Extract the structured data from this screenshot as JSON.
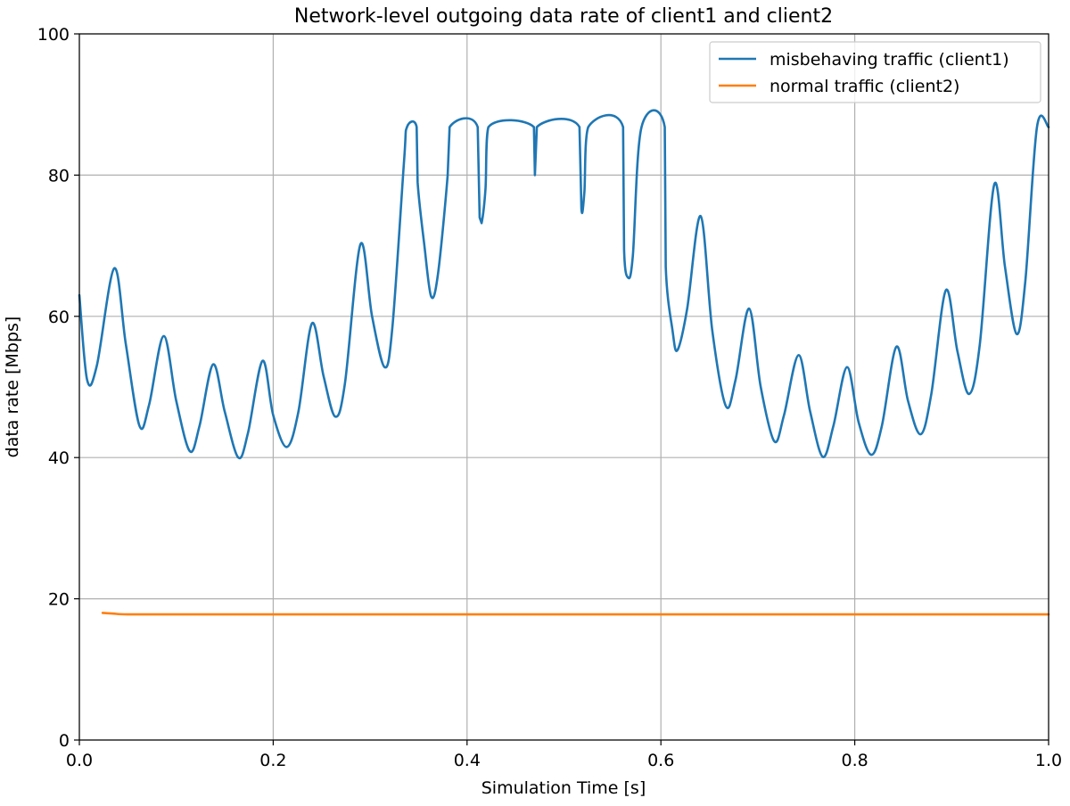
{
  "chart_data": {
    "type": "line",
    "title": "Network-level outgoing data rate of client1 and client2",
    "xlabel": "Simulation Time [s]",
    "ylabel": "data rate [Mbps]",
    "xlim": [
      0.0,
      1.0
    ],
    "ylim": [
      0,
      100
    ],
    "x_ticks": [
      0.0,
      0.2,
      0.4,
      0.6,
      0.8,
      1.0
    ],
    "x_tick_labels": [
      "0.0",
      "0.2",
      "0.4",
      "0.6",
      "0.8",
      "1.0"
    ],
    "y_ticks": [
      0,
      20,
      40,
      60,
      80,
      100
    ],
    "y_tick_labels": [
      "0",
      "20",
      "40",
      "60",
      "80",
      "100"
    ],
    "grid": true,
    "legend_position": "top-right",
    "series": [
      {
        "name": "misbehaving traffic (client1)",
        "color": "#1f77b4",
        "points": [
          [
            0.0,
            63.0
          ],
          [
            0.008,
            51.0
          ],
          [
            0.018,
            53.0
          ],
          [
            0.036,
            66.8
          ],
          [
            0.048,
            56.0
          ],
          [
            0.062,
            44.5
          ],
          [
            0.072,
            47.5
          ],
          [
            0.087,
            57.2
          ],
          [
            0.1,
            48.0
          ],
          [
            0.114,
            40.9
          ],
          [
            0.124,
            44.5
          ],
          [
            0.138,
            53.2
          ],
          [
            0.15,
            46.5
          ],
          [
            0.164,
            40.0
          ],
          [
            0.174,
            43.5
          ],
          [
            0.189,
            53.7
          ],
          [
            0.2,
            46.0
          ],
          [
            0.214,
            41.5
          ],
          [
            0.226,
            46.5
          ],
          [
            0.24,
            59.0
          ],
          [
            0.252,
            51.5
          ],
          [
            0.264,
            45.8
          ],
          [
            0.274,
            50.5
          ],
          [
            0.29,
            70.2
          ],
          [
            0.302,
            60.0
          ],
          [
            0.315,
            52.8
          ],
          [
            0.323,
            58.5
          ],
          [
            0.335,
            82.0
          ],
          [
            0.338,
            86.8
          ],
          [
            0.348,
            86.8
          ],
          [
            0.349,
            79.0
          ],
          [
            0.356,
            70.0
          ],
          [
            0.363,
            62.8
          ],
          [
            0.37,
            66.0
          ],
          [
            0.38,
            80.0
          ],
          [
            0.382,
            86.8
          ],
          [
            0.411,
            86.8
          ],
          [
            0.413,
            74.0
          ],
          [
            0.415,
            73.2
          ],
          [
            0.419,
            78.0
          ],
          [
            0.422,
            86.8
          ],
          [
            0.469,
            86.8
          ],
          [
            0.47,
            80.0
          ],
          [
            0.472,
            86.8
          ],
          [
            0.516,
            86.8
          ],
          [
            0.518,
            75.2
          ],
          [
            0.521,
            77.5
          ],
          [
            0.525,
            86.8
          ],
          [
            0.561,
            86.8
          ],
          [
            0.562,
            69.5
          ],
          [
            0.566,
            65.5
          ],
          [
            0.571,
            68.5
          ],
          [
            0.58,
            86.8
          ],
          [
            0.604,
            86.8
          ],
          [
            0.605,
            67.0
          ],
          [
            0.612,
            58.0
          ],
          [
            0.617,
            55.2
          ],
          [
            0.627,
            61.0
          ],
          [
            0.641,
            74.2
          ],
          [
            0.653,
            58.0
          ],
          [
            0.667,
            47.3
          ],
          [
            0.677,
            51.0
          ],
          [
            0.691,
            61.1
          ],
          [
            0.703,
            50.0
          ],
          [
            0.717,
            42.3
          ],
          [
            0.727,
            46.0
          ],
          [
            0.742,
            54.5
          ],
          [
            0.754,
            46.5
          ],
          [
            0.767,
            40.1
          ],
          [
            0.778,
            44.5
          ],
          [
            0.792,
            52.8
          ],
          [
            0.804,
            45.0
          ],
          [
            0.817,
            40.4
          ],
          [
            0.828,
            44.5
          ],
          [
            0.843,
            55.7
          ],
          [
            0.855,
            48.0
          ],
          [
            0.868,
            43.3
          ],
          [
            0.879,
            49.0
          ],
          [
            0.894,
            63.7
          ],
          [
            0.906,
            55.0
          ],
          [
            0.918,
            49.0
          ],
          [
            0.929,
            56.0
          ],
          [
            0.944,
            78.7
          ],
          [
            0.955,
            67.0
          ],
          [
            0.967,
            57.5
          ],
          [
            0.976,
            65.0
          ],
          [
            0.988,
            86.8
          ],
          [
            1.0,
            86.8
          ]
        ]
      },
      {
        "name": "normal traffic (client2)",
        "color": "#ff7f0e",
        "points": [
          [
            0.024,
            18.0
          ],
          [
            0.035,
            17.9
          ],
          [
            0.05,
            17.8
          ],
          [
            0.1,
            17.8
          ],
          [
            0.5,
            17.8
          ],
          [
            1.0,
            17.8
          ]
        ]
      }
    ]
  }
}
